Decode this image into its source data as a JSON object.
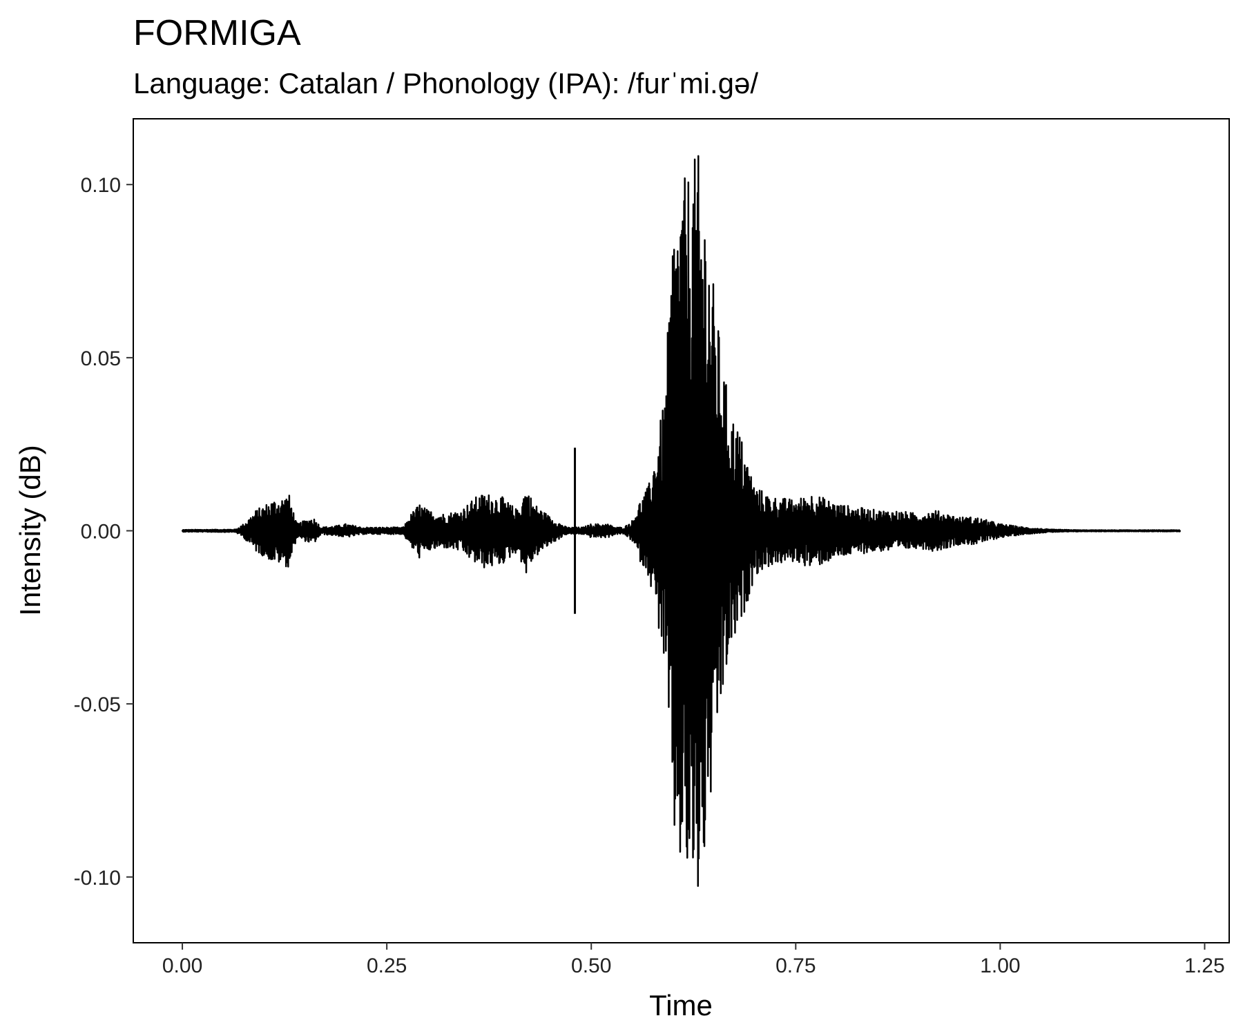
{
  "chart_data": {
    "type": "line",
    "title": "FORMIGA",
    "subtitle": "Language: Catalan / Phonology (IPA): /furˈmi.gə/",
    "xlabel": "Time",
    "ylabel": "Intensity (dB)",
    "xlim": [
      -0.06,
      1.28
    ],
    "ylim": [
      -0.119,
      0.119
    ],
    "x_ticks": [
      0.0,
      0.25,
      0.5,
      0.75,
      1.0,
      1.25
    ],
    "x_tick_labels": [
      "0.00",
      "0.25",
      "0.50",
      "0.75",
      "1.00",
      "1.25"
    ],
    "y_ticks": [
      0.1,
      0.05,
      0.0,
      -0.05,
      -0.1
    ],
    "y_tick_labels": [
      "0.10",
      "0.05",
      "0.00",
      "-0.05",
      "-0.10"
    ],
    "grid": false,
    "line_color": "#000000",
    "series": [
      {
        "x_start": 0.0,
        "x_end": 1.22,
        "envelope": {
          "t": [
            0.0,
            0.065,
            0.075,
            0.09,
            0.11,
            0.125,
            0.13,
            0.14,
            0.15,
            0.16,
            0.17,
            0.19,
            0.2,
            0.22,
            0.25,
            0.27,
            0.28,
            0.29,
            0.3,
            0.32,
            0.34,
            0.36,
            0.37,
            0.39,
            0.41,
            0.42,
            0.43,
            0.45,
            0.47,
            0.49,
            0.5,
            0.52,
            0.53,
            0.54,
            0.55,
            0.56,
            0.57,
            0.58,
            0.59,
            0.6,
            0.61,
            0.62,
            0.63,
            0.64,
            0.65,
            0.66,
            0.67,
            0.68,
            0.7,
            0.72,
            0.75,
            0.77,
            0.8,
            0.82,
            0.85,
            0.87,
            0.9,
            0.92,
            0.95,
            0.97,
            1.0,
            1.03,
            1.06,
            1.1,
            1.22
          ],
          "amplitude": [
            0.0003,
            0.0004,
            0.002,
            0.006,
            0.009,
            0.01,
            0.011,
            0.002,
            0.003,
            0.004,
            0.001,
            0.0015,
            0.002,
            0.001,
            0.001,
            0.001,
            0.005,
            0.008,
            0.006,
            0.005,
            0.006,
            0.01,
            0.011,
            0.01,
            0.006,
            0.013,
            0.008,
            0.004,
            0.001,
            0.001,
            0.002,
            0.002,
            0.001,
            0.001,
            0.003,
            0.009,
            0.013,
            0.025,
            0.04,
            0.09,
            0.1,
            0.105,
            0.11,
            0.095,
            0.07,
            0.05,
            0.035,
            0.03,
            0.013,
            0.01,
            0.009,
            0.011,
            0.008,
            0.007,
            0.006,
            0.006,
            0.005,
            0.006,
            0.004,
            0.004,
            0.002,
            0.001,
            0.0004,
            0.0002,
            0.0002
          ]
        },
        "spikes": [
          {
            "x": 0.48,
            "y_max": 0.024,
            "y_min": -0.024
          }
        ]
      }
    ]
  }
}
